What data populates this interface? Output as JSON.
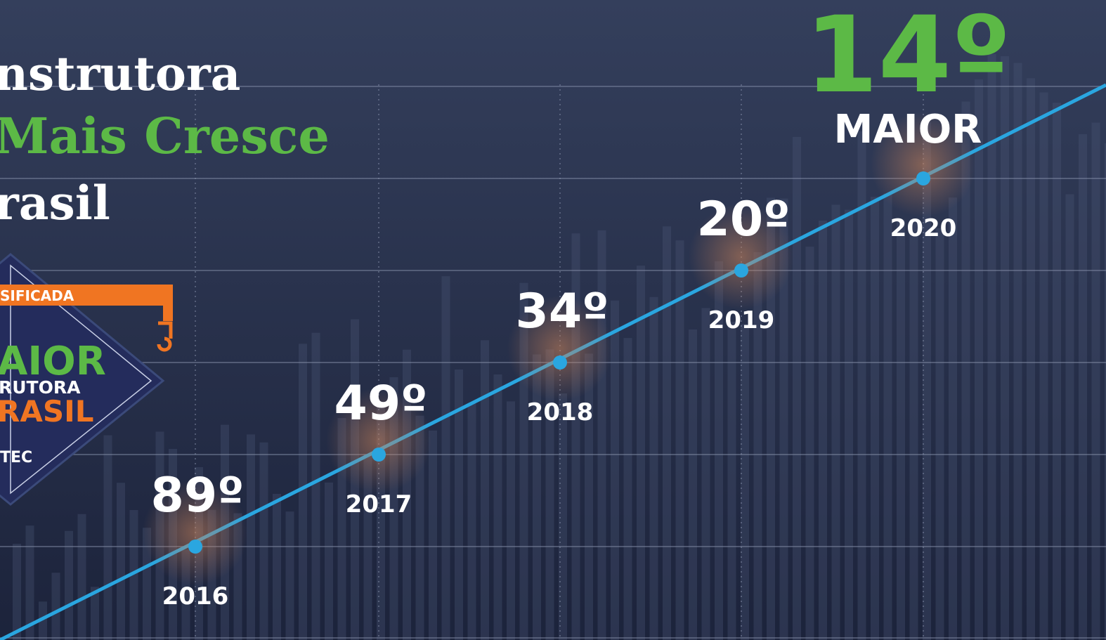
{
  "headline": {
    "line1": "nstrutora",
    "line2": "Mais Cresce",
    "line3": "rasil"
  },
  "badge": {
    "ribbon": "SIFICADA",
    "line1": "AIOR",
    "line2": "RUTORA",
    "line3": "RASIL",
    "brand": "TEC"
  },
  "highlight": {
    "rank": "14º",
    "label": "MAIOR"
  },
  "milestones": [
    {
      "rank": "89º",
      "year": "2016"
    },
    {
      "rank": "49º",
      "year": "2017"
    },
    {
      "rank": "34º",
      "year": "2018"
    },
    {
      "rank": "20º",
      "year": "2019"
    },
    {
      "rank": null,
      "year": "2020"
    }
  ]
}
